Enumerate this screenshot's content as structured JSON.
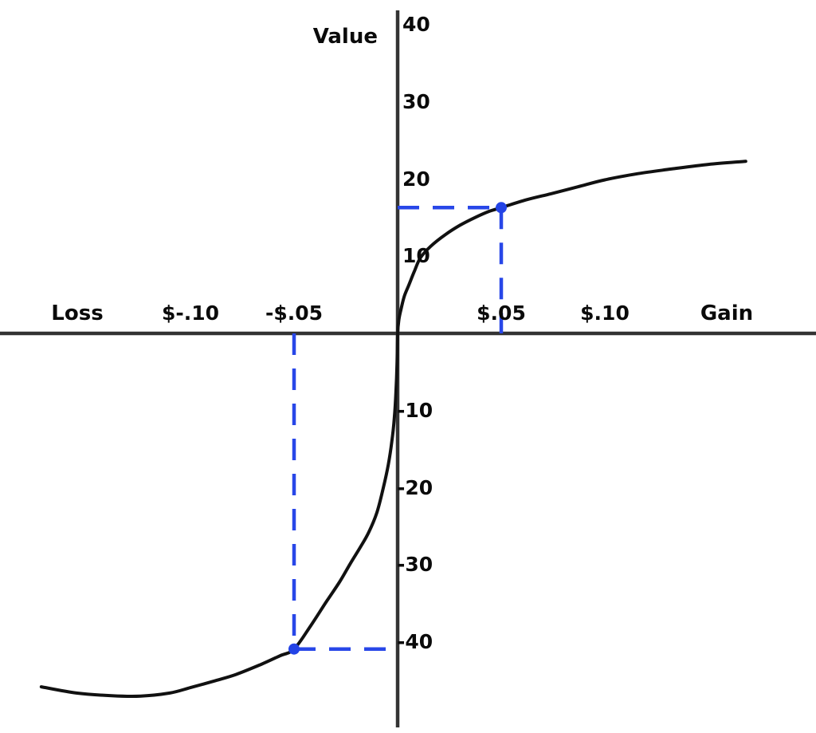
{
  "chart_data": {
    "type": "line",
    "ylabel": "Value",
    "xlabel_left": "Loss",
    "xlabel_right": "Gain",
    "x_unit": "dollars",
    "y_unit": "value",
    "xlim": [
      -0.19,
      0.2
    ],
    "ylim": [
      -48,
      42
    ],
    "grid": false,
    "legend": false,
    "x_ticks": [
      {
        "x": -0.1,
        "label": "$-.10"
      },
      {
        "x": -0.05,
        "label": "-$.05"
      },
      {
        "x": 0.05,
        "label": "$.05"
      },
      {
        "x": 0.1,
        "label": "$.10"
      }
    ],
    "y_ticks": [
      {
        "v": 40,
        "label": "40"
      },
      {
        "v": 30,
        "label": "30"
      },
      {
        "v": 20,
        "label": "20"
      },
      {
        "v": 10,
        "label": "10"
      },
      {
        "v": -10,
        "label": "-10"
      },
      {
        "v": -20,
        "label": "-20"
      },
      {
        "v": -30,
        "label": "-30"
      },
      {
        "v": -40,
        "label": "-40"
      }
    ],
    "highlight_points": [
      {
        "x": 0.05,
        "value": 16.3
      },
      {
        "x": -0.05,
        "value": -40.9
      }
    ],
    "guide_lines": [
      {
        "from": [
          0,
          16.3
        ],
        "to": [
          0.05,
          16.3
        ]
      },
      {
        "from": [
          0.05,
          16.3
        ],
        "to": [
          0.05,
          0
        ]
      },
      {
        "from": [
          -0.05,
          0
        ],
        "to": [
          -0.05,
          -40.9
        ]
      },
      {
        "from": [
          -0.05,
          -40.9
        ],
        "to": [
          0,
          -40.9
        ]
      }
    ],
    "curve_points": [
      [
        -0.172,
        -45.8
      ],
      [
        -0.155,
        -46.6
      ],
      [
        -0.138,
        -46.95
      ],
      [
        -0.124,
        -47.0
      ],
      [
        -0.11,
        -46.6
      ],
      [
        -0.1,
        -45.9
      ],
      [
        -0.088,
        -45.0
      ],
      [
        -0.078,
        -44.2
      ],
      [
        -0.066,
        -42.9
      ],
      [
        -0.057,
        -41.8
      ],
      [
        -0.05,
        -40.9
      ],
      [
        -0.042,
        -37.9
      ],
      [
        -0.034,
        -34.6
      ],
      [
        -0.028,
        -32.2
      ],
      [
        -0.023,
        -29.9
      ],
      [
        -0.018,
        -27.7
      ],
      [
        -0.014,
        -25.8
      ],
      [
        -0.01,
        -23.2
      ],
      [
        -0.007,
        -20.1
      ],
      [
        -0.0045,
        -17.0
      ],
      [
        -0.0028,
        -14.0
      ],
      [
        -0.0016,
        -11.0
      ],
      [
        -0.0008,
        -7.5
      ],
      [
        -0.0003,
        -4.0
      ],
      [
        0,
        0
      ],
      [
        0.0006,
        1.8
      ],
      [
        0.0016,
        3.1
      ],
      [
        0.0032,
        4.8
      ],
      [
        0.0053,
        6.2
      ],
      [
        0.008,
        8.0
      ],
      [
        0.011,
        9.8
      ],
      [
        0.016,
        11.3
      ],
      [
        0.023,
        12.8
      ],
      [
        0.03,
        14.0
      ],
      [
        0.038,
        15.1
      ],
      [
        0.044,
        15.8
      ],
      [
        0.05,
        16.3
      ],
      [
        0.062,
        17.3
      ],
      [
        0.074,
        18.1
      ],
      [
        0.087,
        19.0
      ],
      [
        0.1,
        19.9
      ],
      [
        0.116,
        20.7
      ],
      [
        0.132,
        21.3
      ],
      [
        0.15,
        21.9
      ],
      [
        0.168,
        22.3
      ]
    ],
    "colors": {
      "curve": "#111111",
      "axis": "#333333",
      "guide": "#2847e8",
      "point": "#2343e6",
      "text": "#0a0a0a"
    }
  }
}
